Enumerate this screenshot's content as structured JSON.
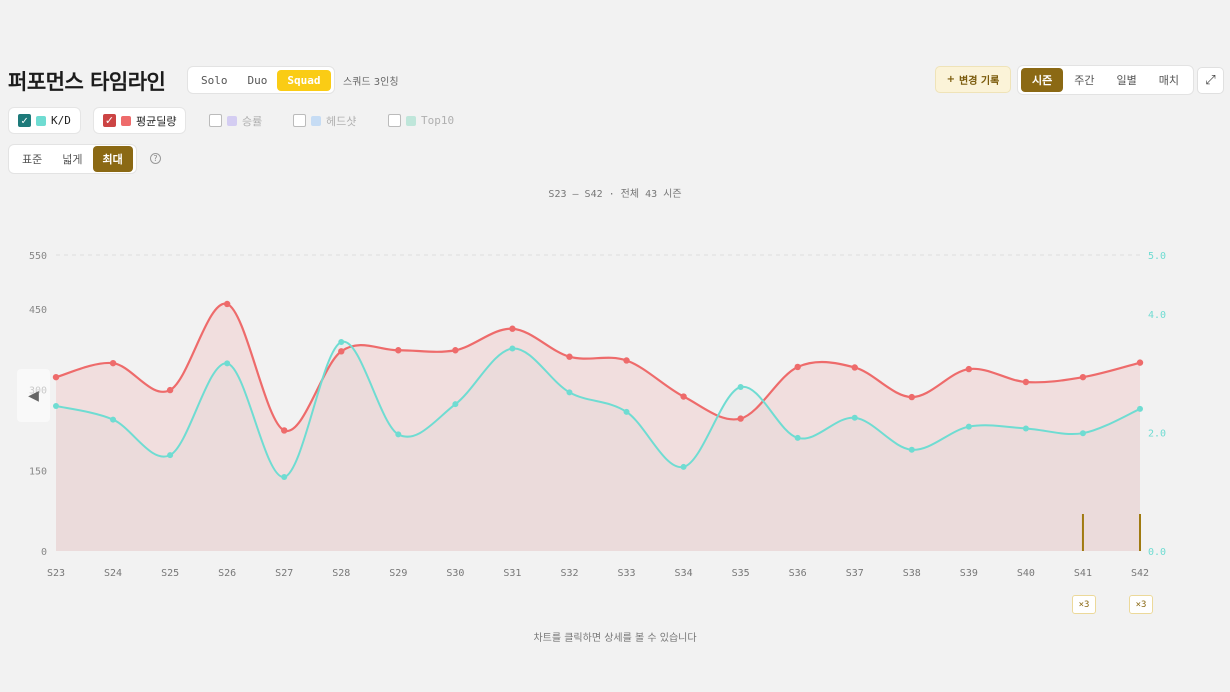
{
  "header": {
    "title": "퍼포먼스 타임라인",
    "modes": [
      "Solo",
      "Duo",
      "Squad"
    ],
    "active_mode": "Squad",
    "squad_note": "스쿼드 3인칭",
    "change_log_label": "변경 기록",
    "change_log_icon": "+",
    "periods": [
      "시즌",
      "주간",
      "일별",
      "매치"
    ],
    "active_period": "시즌",
    "expand_icon": "⤢"
  },
  "metrics": [
    {
      "label": "K/D",
      "checked": true,
      "color": "#6fdcd2"
    },
    {
      "label": "평균딜량",
      "checked": true,
      "color": "#ee6b6b"
    },
    {
      "label": "승률",
      "checked": false,
      "color": "#d4cdf2"
    },
    {
      "label": "헤드샷",
      "checked": false,
      "color": "#c6dcf4"
    },
    {
      "label": "Top10",
      "checked": false,
      "color": "#bfe6da"
    }
  ],
  "widths": [
    "표준",
    "넓게",
    "최대"
  ],
  "active_width": "최대",
  "help_icon": "?",
  "range_text": "S23 – S42 · 전체 43 시즌",
  "hint_text": "차트를 클릭하면 상세를 볼 수 있습니다",
  "badges": [
    {
      "season": "S41",
      "label": "×3"
    },
    {
      "season": "S42",
      "label": "×3"
    }
  ],
  "chart_data": {
    "type": "line",
    "title": "",
    "x": [
      "S23",
      "S24",
      "S25",
      "S26",
      "S27",
      "S28",
      "S29",
      "S30",
      "S31",
      "S32",
      "S33",
      "S34",
      "S35",
      "S36",
      "S37",
      "S38",
      "S39",
      "S40",
      "S41",
      "S42"
    ],
    "y_left": {
      "ticks": [
        "0",
        "150",
        "300",
        "450",
        "550"
      ],
      "range": [
        0,
        550
      ]
    },
    "y_right": {
      "ticks": [
        "0.0",
        "2.0",
        "4.0",
        "5.0"
      ],
      "range": [
        0,
        5
      ]
    },
    "series": [
      {
        "name": "평균딜량",
        "axis": "left",
        "color": "#ee6b6b",
        "values": [
          323,
          349,
          299,
          459,
          224,
          371,
          373,
          373,
          413,
          361,
          354,
          287,
          246,
          342,
          341,
          286,
          338,
          314,
          323,
          350
        ]
      },
      {
        "name": "K/D",
        "axis": "right",
        "color": "#6fdcd2",
        "values": [
          2.45,
          2.22,
          1.62,
          3.17,
          1.25,
          3.53,
          1.97,
          2.48,
          3.42,
          2.68,
          2.35,
          1.42,
          2.77,
          1.91,
          2.25,
          1.71,
          2.1,
          2.07,
          1.99,
          2.4
        ]
      }
    ],
    "markers": [
      {
        "season": "S41"
      },
      {
        "season": "S42"
      }
    ],
    "grid": "top-only dashed",
    "legend": "top-left toggles"
  }
}
